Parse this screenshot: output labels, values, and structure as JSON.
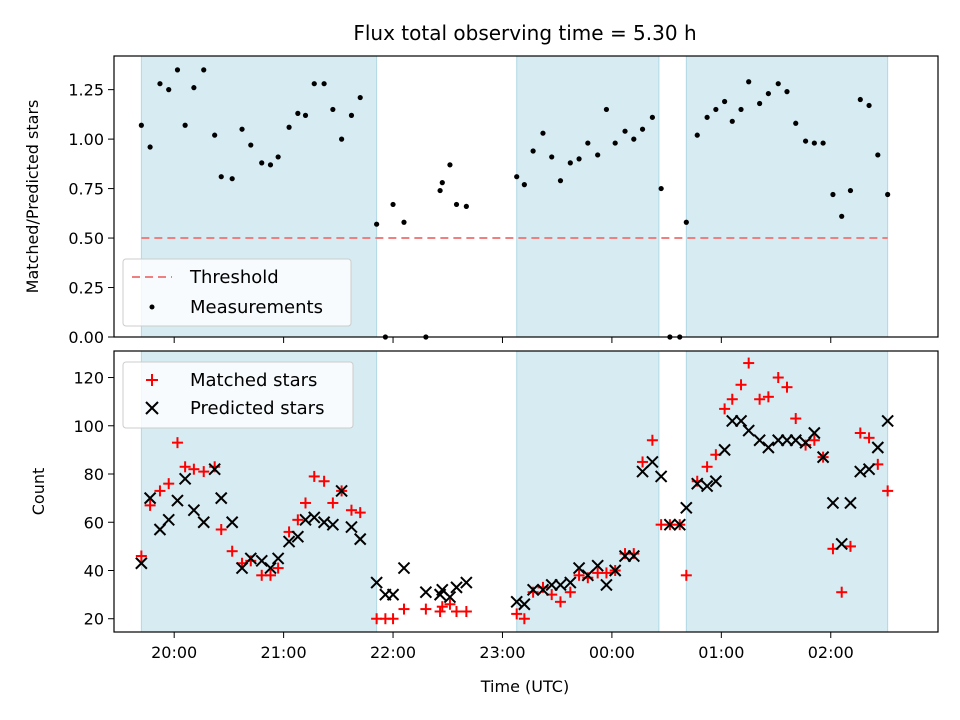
{
  "colors": {
    "band": "#add8e6",
    "threshold": "#f08080",
    "matched": "#ff0000",
    "predicted": "#000000",
    "measurement": "#000000"
  },
  "chart_data": [
    {
      "type": "scatter",
      "title": "Flux total observing time = 5.30 h",
      "xlabel": "",
      "ylabel": "Matched/Predicted stars",
      "xlim": [
        19.45,
        26.98
      ],
      "ylim": [
        0,
        1.42
      ],
      "yticks": [
        0,
        0.25,
        0.5,
        0.75,
        1.0,
        1.25
      ],
      "ytick_labels": [
        "0.00",
        "0.25",
        "0.50",
        "0.75",
        "1.00",
        "1.25"
      ],
      "x_unit": "hours UTC (values above 24 are after midnight)",
      "shaded_intervals": [
        [
          19.7,
          21.85
        ],
        [
          23.13,
          24.43
        ],
        [
          24.68,
          26.52
        ]
      ],
      "threshold": 0.5,
      "legend": {
        "placement": "lower-left",
        "entries": [
          "Threshold",
          "Measurements"
        ]
      },
      "series": [
        {
          "name": "Measurements",
          "marker": "dot",
          "x": [
            19.7,
            19.78,
            19.87,
            19.95,
            20.03,
            20.1,
            20.18,
            20.27,
            20.37,
            20.43,
            20.53,
            20.62,
            20.7,
            20.8,
            20.88,
            20.95,
            21.05,
            21.13,
            21.2,
            21.28,
            21.37,
            21.45,
            21.53,
            21.62,
            21.7,
            21.85,
            21.93,
            22.0,
            22.1,
            22.3,
            22.43,
            22.45,
            22.52,
            22.58,
            22.67,
            23.13,
            23.2,
            23.28,
            23.37,
            23.45,
            23.53,
            23.62,
            23.7,
            23.78,
            23.87,
            23.95,
            24.03,
            24.12,
            24.2,
            24.28,
            24.37,
            24.45,
            24.53,
            24.62,
            24.68,
            24.78,
            24.87,
            24.95,
            25.03,
            25.1,
            25.18,
            25.25,
            25.35,
            25.43,
            25.52,
            25.6,
            25.68,
            25.77,
            25.85,
            25.93,
            26.02,
            26.1,
            26.18,
            26.27,
            26.35,
            26.43,
            26.52
          ],
          "y": [
            1.07,
            0.96,
            1.28,
            1.25,
            1.35,
            1.07,
            1.26,
            1.35,
            1.02,
            0.81,
            0.8,
            1.05,
            0.97,
            0.88,
            0.87,
            0.91,
            1.06,
            1.13,
            1.12,
            1.28,
            1.28,
            1.15,
            1.0,
            1.12,
            1.21,
            0.57,
            0.0,
            0.67,
            0.58,
            0.0,
            0.74,
            0.78,
            0.87,
            0.67,
            0.66,
            0.81,
            0.77,
            0.94,
            1.03,
            0.91,
            0.79,
            0.88,
            0.9,
            0.98,
            0.92,
            1.15,
            0.98,
            1.04,
            1.0,
            1.05,
            1.11,
            0.75,
            0.0,
            0.0,
            0.58,
            1.02,
            1.11,
            1.15,
            1.19,
            1.09,
            1.15,
            1.29,
            1.18,
            1.23,
            1.28,
            1.24,
            1.08,
            0.99,
            0.98,
            0.98,
            0.72,
            0.61,
            0.74,
            1.2,
            1.17,
            0.92,
            0.72
          ]
        },
        {
          "name": "Threshold",
          "marker": "dashed-line",
          "value": 0.5
        }
      ]
    },
    {
      "type": "scatter",
      "title": "",
      "xlabel": "Time (UTC)",
      "ylabel": "Count",
      "xlim": [
        19.45,
        26.98
      ],
      "ylim": [
        14.5,
        131
      ],
      "yticks": [
        20,
        40,
        60,
        80,
        100,
        120
      ],
      "ytick_labels": [
        "20",
        "40",
        "60",
        "80",
        "100",
        "120"
      ],
      "xticks": [
        20,
        21,
        22,
        23,
        24,
        25,
        26
      ],
      "xtick_labels": [
        "20:00",
        "21:00",
        "22:00",
        "23:00",
        "00:00",
        "01:00",
        "02:00"
      ],
      "x_unit": "hours UTC (values above 24 are after midnight)",
      "shaded_intervals": [
        [
          19.7,
          21.85
        ],
        [
          23.13,
          24.43
        ],
        [
          24.68,
          26.52
        ]
      ],
      "legend": {
        "placement": "upper-left",
        "entries": [
          "Matched stars",
          "Predicted stars"
        ]
      },
      "series": [
        {
          "name": "Matched stars",
          "marker": "plus",
          "x": [
            19.7,
            19.78,
            19.87,
            19.95,
            20.03,
            20.1,
            20.18,
            20.27,
            20.37,
            20.43,
            20.53,
            20.62,
            20.7,
            20.8,
            20.88,
            20.95,
            21.05,
            21.13,
            21.2,
            21.28,
            21.37,
            21.45,
            21.53,
            21.62,
            21.7,
            21.85,
            21.93,
            22.0,
            22.1,
            22.3,
            22.43,
            22.45,
            22.52,
            22.58,
            22.67,
            23.13,
            23.2,
            23.28,
            23.37,
            23.45,
            23.53,
            23.62,
            23.7,
            23.78,
            23.87,
            23.95,
            24.03,
            24.12,
            24.2,
            24.28,
            24.37,
            24.45,
            24.53,
            24.62,
            24.68,
            24.78,
            24.87,
            24.95,
            25.03,
            25.1,
            25.18,
            25.25,
            25.35,
            25.43,
            25.52,
            25.6,
            25.68,
            25.77,
            25.85,
            25.93,
            26.02,
            26.1,
            26.18,
            26.27,
            26.35,
            26.43,
            26.52
          ],
          "y": [
            46,
            67,
            73,
            76,
            93,
            83,
            82,
            81,
            83,
            57,
            48,
            43,
            44,
            38,
            38,
            41,
            56,
            61,
            68,
            79,
            77,
            68,
            73,
            65,
            64,
            20,
            20,
            20,
            24,
            24,
            23,
            25,
            26,
            23,
            23,
            22,
            20,
            31,
            33,
            30,
            27,
            31,
            38,
            37,
            39,
            39,
            40,
            47,
            47,
            85,
            94,
            59,
            59,
            59,
            38,
            77,
            83,
            88,
            107,
            111,
            117,
            126,
            111,
            112,
            120,
            116,
            103,
            92,
            94,
            87,
            49,
            31,
            50,
            97,
            95,
            84,
            73
          ]
        },
        {
          "name": "Predicted stars",
          "marker": "x",
          "x": [
            19.7,
            19.78,
            19.87,
            19.95,
            20.03,
            20.1,
            20.18,
            20.27,
            20.37,
            20.43,
            20.53,
            20.62,
            20.7,
            20.8,
            20.88,
            20.95,
            21.05,
            21.13,
            21.2,
            21.28,
            21.37,
            21.45,
            21.53,
            21.62,
            21.7,
            21.85,
            21.93,
            22.0,
            22.1,
            22.3,
            22.43,
            22.45,
            22.52,
            22.58,
            22.67,
            23.13,
            23.2,
            23.28,
            23.37,
            23.45,
            23.53,
            23.62,
            23.7,
            23.78,
            23.87,
            23.95,
            24.03,
            24.12,
            24.2,
            24.28,
            24.37,
            24.45,
            24.53,
            24.62,
            24.68,
            24.78,
            24.87,
            24.95,
            25.03,
            25.1,
            25.18,
            25.25,
            25.35,
            25.43,
            25.52,
            25.6,
            25.68,
            25.77,
            25.85,
            25.93,
            26.02,
            26.1,
            26.18,
            26.27,
            26.35,
            26.43,
            26.52
          ],
          "y": [
            43,
            70,
            57,
            61,
            69,
            78,
            65,
            60,
            82,
            70,
            60,
            41,
            45,
            44,
            41,
            45,
            52,
            54,
            61,
            62,
            60,
            59,
            73,
            58,
            53,
            35,
            30,
            30,
            41,
            31,
            30,
            32,
            29,
            33,
            35,
            27,
            26,
            32,
            32,
            34,
            34,
            35,
            41,
            38,
            42,
            34,
            40,
            46,
            46,
            81,
            85,
            79,
            59,
            59,
            66,
            76,
            75,
            77,
            90,
            102,
            102,
            98,
            94,
            91,
            94,
            94,
            94,
            93,
            97,
            87,
            68,
            51,
            68,
            81,
            82,
            91,
            102
          ]
        }
      ]
    }
  ]
}
